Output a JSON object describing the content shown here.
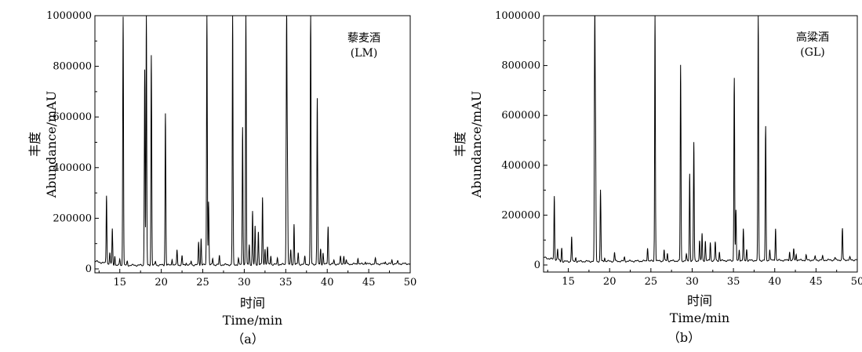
{
  "chart_data": [
    {
      "type": "line",
      "panel_label": "（a）",
      "annotation": [
        "藜麦酒",
        "(LM)"
      ],
      "xlabel": [
        "时间",
        "Time/min"
      ],
      "ylabel": [
        "丰度",
        "Abundance/mAU"
      ],
      "xlim": [
        12,
        50
      ],
      "ylim": [
        0,
        1000000
      ],
      "xticks": [
        "15",
        "20",
        "25",
        "30",
        "35",
        "40",
        "45",
        "50"
      ],
      "yticks": [
        "0",
        "200000",
        "400000",
        "600000",
        "800000",
        "1000000"
      ],
      "peaks": [
        {
          "x": 13.4,
          "y": 285000
        },
        {
          "x": 13.8,
          "y": 60000
        },
        {
          "x": 14.1,
          "y": 160000
        },
        {
          "x": 14.4,
          "y": 55000
        },
        {
          "x": 15.0,
          "y": 40000
        },
        {
          "x": 15.4,
          "y": 1000000
        },
        {
          "x": 15.9,
          "y": 30000
        },
        {
          "x": 18.0,
          "y": 790000
        },
        {
          "x": 18.2,
          "y": 1000000
        },
        {
          "x": 18.8,
          "y": 845000
        },
        {
          "x": 19.3,
          "y": 30000
        },
        {
          "x": 20.5,
          "y": 615000
        },
        {
          "x": 21.3,
          "y": 40000
        },
        {
          "x": 21.9,
          "y": 75000
        },
        {
          "x": 22.5,
          "y": 50000
        },
        {
          "x": 23.0,
          "y": 25000
        },
        {
          "x": 23.6,
          "y": 30000
        },
        {
          "x": 24.5,
          "y": 105000
        },
        {
          "x": 24.8,
          "y": 120000
        },
        {
          "x": 25.5,
          "y": 1000000
        },
        {
          "x": 25.7,
          "y": 265000
        },
        {
          "x": 26.2,
          "y": 40000
        },
        {
          "x": 27.0,
          "y": 50000
        },
        {
          "x": 28.6,
          "y": 1000000
        },
        {
          "x": 29.3,
          "y": 40000
        },
        {
          "x": 29.8,
          "y": 560000
        },
        {
          "x": 30.2,
          "y": 1000000
        },
        {
          "x": 30.6,
          "y": 95000
        },
        {
          "x": 31.0,
          "y": 225000
        },
        {
          "x": 31.3,
          "y": 165000
        },
        {
          "x": 31.7,
          "y": 145000
        },
        {
          "x": 32.2,
          "y": 280000
        },
        {
          "x": 32.5,
          "y": 80000
        },
        {
          "x": 32.8,
          "y": 85000
        },
        {
          "x": 33.2,
          "y": 50000
        },
        {
          "x": 34.0,
          "y": 40000
        },
        {
          "x": 35.1,
          "y": 1000000
        },
        {
          "x": 35.2,
          "y": 415000
        },
        {
          "x": 35.6,
          "y": 70000
        },
        {
          "x": 36.0,
          "y": 175000
        },
        {
          "x": 36.5,
          "y": 60000
        },
        {
          "x": 37.3,
          "y": 45000
        },
        {
          "x": 38.0,
          "y": 1000000
        },
        {
          "x": 38.8,
          "y": 670000
        },
        {
          "x": 39.2,
          "y": 75000
        },
        {
          "x": 39.5,
          "y": 60000
        },
        {
          "x": 40.1,
          "y": 165000
        },
        {
          "x": 40.8,
          "y": 30000
        },
        {
          "x": 41.6,
          "y": 45000
        },
        {
          "x": 42.0,
          "y": 50000
        },
        {
          "x": 42.3,
          "y": 30000
        },
        {
          "x": 43.7,
          "y": 40000
        },
        {
          "x": 44.6,
          "y": 25000
        },
        {
          "x": 45.8,
          "y": 35000
        },
        {
          "x": 47.0,
          "y": 25000
        },
        {
          "x": 47.8,
          "y": 30000
        },
        {
          "x": 48.5,
          "y": 25000
        }
      ]
    },
    {
      "type": "line",
      "panel_label": "（b）",
      "annotation": [
        "高粱酒",
        "(GL)"
      ],
      "xlabel": [
        "时间",
        "Time/min"
      ],
      "ylabel": [
        "丰度",
        "Abundance/mAU"
      ],
      "xlim": [
        12,
        50
      ],
      "ylim": [
        0,
        1000000
      ],
      "xticks": [
        "15",
        "20",
        "25",
        "30",
        "35",
        "40",
        "45",
        "50"
      ],
      "yticks": [
        "0",
        "200000",
        "400000",
        "600000",
        "800000",
        "1000000"
      ],
      "peaks": [
        {
          "x": 13.3,
          "y": 270000
        },
        {
          "x": 13.7,
          "y": 60000
        },
        {
          "x": 14.2,
          "y": 70000
        },
        {
          "x": 15.4,
          "y": 115000
        },
        {
          "x": 15.9,
          "y": 30000
        },
        {
          "x": 18.2,
          "y": 1000000
        },
        {
          "x": 18.3,
          "y": 500000
        },
        {
          "x": 18.9,
          "y": 300000
        },
        {
          "x": 19.4,
          "y": 30000
        },
        {
          "x": 20.6,
          "y": 50000
        },
        {
          "x": 21.8,
          "y": 30000
        },
        {
          "x": 24.6,
          "y": 70000
        },
        {
          "x": 25.5,
          "y": 1000000
        },
        {
          "x": 26.6,
          "y": 60000
        },
        {
          "x": 27.0,
          "y": 45000
        },
        {
          "x": 28.6,
          "y": 800000
        },
        {
          "x": 29.3,
          "y": 40000
        },
        {
          "x": 29.7,
          "y": 365000
        },
        {
          "x": 30.2,
          "y": 490000
        },
        {
          "x": 30.9,
          "y": 95000
        },
        {
          "x": 31.2,
          "y": 125000
        },
        {
          "x": 31.6,
          "y": 95000
        },
        {
          "x": 32.2,
          "y": 90000
        },
        {
          "x": 32.8,
          "y": 90000
        },
        {
          "x": 33.3,
          "y": 50000
        },
        {
          "x": 35.1,
          "y": 750000
        },
        {
          "x": 35.3,
          "y": 215000
        },
        {
          "x": 35.7,
          "y": 60000
        },
        {
          "x": 36.2,
          "y": 140000
        },
        {
          "x": 36.6,
          "y": 60000
        },
        {
          "x": 38.0,
          "y": 1000000
        },
        {
          "x": 38.9,
          "y": 550000
        },
        {
          "x": 39.4,
          "y": 60000
        },
        {
          "x": 40.1,
          "y": 145000
        },
        {
          "x": 41.8,
          "y": 50000
        },
        {
          "x": 42.3,
          "y": 60000
        },
        {
          "x": 42.6,
          "y": 40000
        },
        {
          "x": 43.8,
          "y": 35000
        },
        {
          "x": 44.9,
          "y": 30000
        },
        {
          "x": 45.8,
          "y": 30000
        },
        {
          "x": 47.3,
          "y": 25000
        },
        {
          "x": 48.2,
          "y": 140000
        },
        {
          "x": 49.1,
          "y": 25000
        }
      ]
    }
  ]
}
